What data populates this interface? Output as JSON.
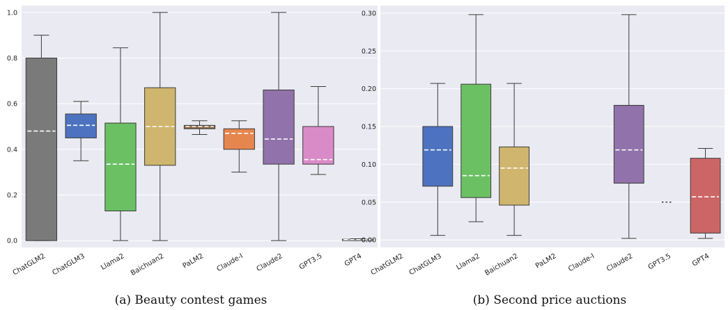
{
  "chart_data": [
    {
      "type": "box",
      "caption": "(a) Beauty contest games",
      "categories": [
        "ChatGLM2",
        "ChatGLM3",
        "Llama2",
        "Baichuan2",
        "PaLM2",
        "Claude-I",
        "Claude2",
        "GPT3.5",
        "GPT4"
      ],
      "ylim": [
        -0.03,
        1.03
      ],
      "yticks": [
        "0.0",
        "0.2",
        "0.4",
        "0.6",
        "0.8",
        "1.0"
      ],
      "grid": true,
      "boxes": [
        {
          "whislo": 0.0,
          "q1": 0.0,
          "median": 0.48,
          "q3": 0.8,
          "whishi": 0.9,
          "color": "#7a7a7a"
        },
        {
          "whislo": 0.35,
          "q1": 0.45,
          "median": 0.505,
          "q3": 0.555,
          "whishi": 0.61,
          "color": "#4d73c0"
        },
        {
          "whislo": 0.0,
          "q1": 0.13,
          "median": 0.335,
          "q3": 0.515,
          "whishi": 0.845,
          "color": "#6cc064"
        },
        {
          "whislo": 0.0,
          "q1": 0.33,
          "median": 0.5,
          "q3": 0.67,
          "whishi": 1.0,
          "color": "#cfb56d"
        },
        {
          "whislo": 0.465,
          "q1": 0.49,
          "median": 0.5,
          "q3": 0.505,
          "whishi": 0.525,
          "color": "#8f6a4a"
        },
        {
          "whislo": 0.3,
          "q1": 0.4,
          "median": 0.47,
          "q3": 0.49,
          "whishi": 0.525,
          "color": "#e6864f"
        },
        {
          "whislo": 0.0,
          "q1": 0.335,
          "median": 0.445,
          "q3": 0.66,
          "whishi": 1.0,
          "color": "#9172ab"
        },
        {
          "whislo": 0.29,
          "q1": 0.335,
          "median": 0.355,
          "q3": 0.5,
          "whishi": 0.675,
          "color": "#d98bc7"
        },
        {
          "whislo": 0.0,
          "q1": 0.0,
          "median": 0.004,
          "q3": 0.006,
          "whishi": 0.008,
          "color": "#f0f0f0"
        }
      ]
    },
    {
      "type": "box",
      "caption": "(b) Second price auctions",
      "categories": [
        "ChatGLM2",
        "ChatGLM3",
        "Llama2",
        "Baichuan2",
        "PaLM2",
        "Claude-I",
        "Claude2",
        "GPT3.5",
        "GPT4"
      ],
      "ylim": [
        -0.01,
        0.31
      ],
      "yticks": [
        "0.00",
        "0.05",
        "0.10",
        "0.15",
        "0.20",
        "0.25",
        "0.30"
      ],
      "grid": true,
      "boxes": [
        null,
        {
          "whislo": 0.006,
          "q1": 0.071,
          "median": 0.119,
          "q3": 0.15,
          "whishi": 0.207,
          "color": "#4d73c0"
        },
        {
          "whislo": 0.024,
          "q1": 0.056,
          "median": 0.085,
          "q3": 0.206,
          "whishi": 0.298,
          "color": "#6cc064"
        },
        {
          "whislo": 0.006,
          "q1": 0.046,
          "median": 0.095,
          "q3": 0.123,
          "whishi": 0.207,
          "color": "#cfb56d"
        },
        null,
        null,
        {
          "whislo": 0.002,
          "q1": 0.075,
          "median": 0.119,
          "q3": 0.178,
          "whishi": 0.298,
          "color": "#9172ab"
        },
        {
          "whislo": 0.05,
          "q1": 0.05,
          "median": 0.05,
          "q3": 0.05,
          "whishi": 0.05,
          "color": "#333333"
        },
        {
          "whislo": 0.002,
          "q1": 0.009,
          "median": 0.057,
          "q3": 0.108,
          "whishi": 0.121,
          "color": "#cc6666"
        }
      ]
    }
  ]
}
